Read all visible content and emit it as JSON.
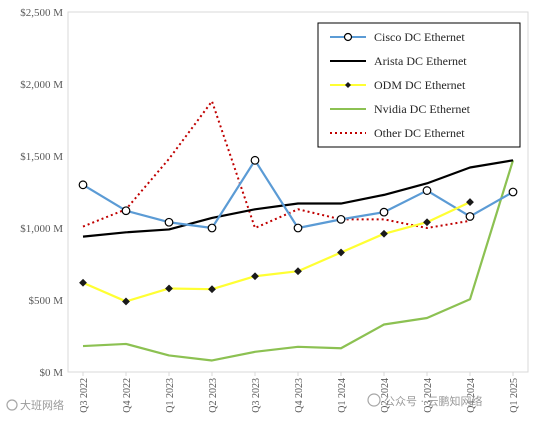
{
  "chart_data": {
    "type": "line",
    "categories": [
      "Q3 2022",
      "Q4 2022",
      "Q1 2023",
      "Q2 2023",
      "Q3 2023",
      "Q4 2023",
      "Q1 2024",
      "Q2 2024",
      "Q3 2024",
      "Q4 2024",
      "Q1 2025"
    ],
    "ylim": [
      0,
      2500
    ],
    "yticks": [
      0,
      500,
      1000,
      1500,
      2000,
      2500
    ],
    "ytick_labels": [
      "$0 M",
      "$500 M",
      "$1,000 M",
      "$1,500 M",
      "$2,000 M",
      "$2,500 M"
    ],
    "grid": false,
    "legend_position": "top-right",
    "series": [
      {
        "name": "Cisco DC Ethernet",
        "color": "#5b9bd5",
        "style": "solid",
        "marker": "open-circle",
        "values": [
          1300,
          1120,
          1040,
          1000,
          1470,
          1000,
          1060,
          1110,
          1260,
          1080,
          1250
        ]
      },
      {
        "name": "Arista DC Ethernet",
        "color": "#000000",
        "style": "solid",
        "marker": "none",
        "values": [
          940,
          970,
          990,
          1070,
          1130,
          1170,
          1170,
          1230,
          1310,
          1420,
          1470
        ]
      },
      {
        "name": "ODM DC Ethernet",
        "color": "#ffff33",
        "style": "solid",
        "marker": "diamond",
        "values": [
          620,
          490,
          580,
          575,
          665,
          700,
          830,
          960,
          1040,
          1180,
          null
        ]
      },
      {
        "name": "Nvidia DC Ethernet",
        "color": "#8cc152",
        "style": "solid",
        "marker": "none",
        "values": [
          180,
          195,
          115,
          80,
          140,
          175,
          165,
          330,
          375,
          505,
          1470
        ]
      },
      {
        "name": "Other DC Ethernet",
        "color": "#c00000",
        "style": "dotted",
        "marker": "none",
        "values": [
          1010,
          1130,
          1480,
          1880,
          1000,
          1130,
          1060,
          1060,
          1000,
          1050,
          null
        ]
      }
    ]
  },
  "watermarks": {
    "left": "大班网络",
    "right": "公众号 · 云鹏知网络"
  },
  "icons": {
    "watermark_left": "wechat-logo-icon",
    "watermark_right": "wechat-official-account-icon"
  }
}
